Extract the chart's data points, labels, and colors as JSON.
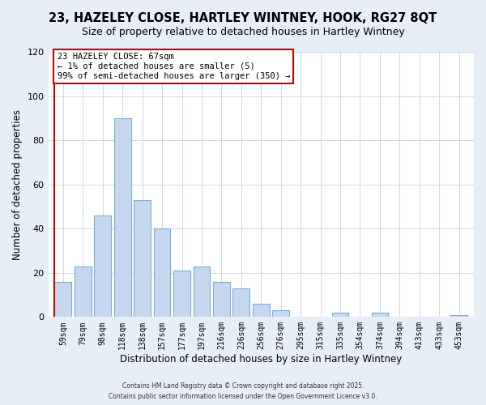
{
  "title": "23, HAZELEY CLOSE, HARTLEY WINTNEY, HOOK, RG27 8QT",
  "subtitle": "Size of property relative to detached houses in Hartley Wintney",
  "xlabel": "Distribution of detached houses by size in Hartley Wintney",
  "ylabel": "Number of detached properties",
  "bar_labels": [
    "59sqm",
    "79sqm",
    "98sqm",
    "118sqm",
    "138sqm",
    "157sqm",
    "177sqm",
    "197sqm",
    "216sqm",
    "236sqm",
    "256sqm",
    "276sqm",
    "295sqm",
    "315sqm",
    "335sqm",
    "354sqm",
    "374sqm",
    "394sqm",
    "413sqm",
    "433sqm",
    "453sqm"
  ],
  "bar_values": [
    16,
    23,
    46,
    90,
    53,
    40,
    21,
    23,
    16,
    13,
    6,
    3,
    0,
    0,
    2,
    0,
    2,
    0,
    0,
    0,
    1
  ],
  "bar_color": "#c5d8ef",
  "bar_edge_color": "#7bafd4",
  "highlight_line_color": "#cc0000",
  "ylim": [
    0,
    120
  ],
  "yticks": [
    0,
    20,
    40,
    60,
    80,
    100,
    120
  ],
  "annotation_text": "23 HAZELEY CLOSE: 67sqm\n← 1% of detached houses are smaller (5)\n99% of semi-detached houses are larger (350) →",
  "annotation_box_edge": "#cc0000",
  "footer_line1": "Contains HM Land Registry data © Crown copyright and database right 2025.",
  "footer_line2": "Contains public sector information licensed under the Open Government Licence v3.0.",
  "bg_color": "#e8eef7",
  "plot_bg_color": "#ffffff",
  "title_fontsize": 10.5,
  "subtitle_fontsize": 9,
  "tick_fontsize": 7,
  "axis_label_fontsize": 8.5
}
